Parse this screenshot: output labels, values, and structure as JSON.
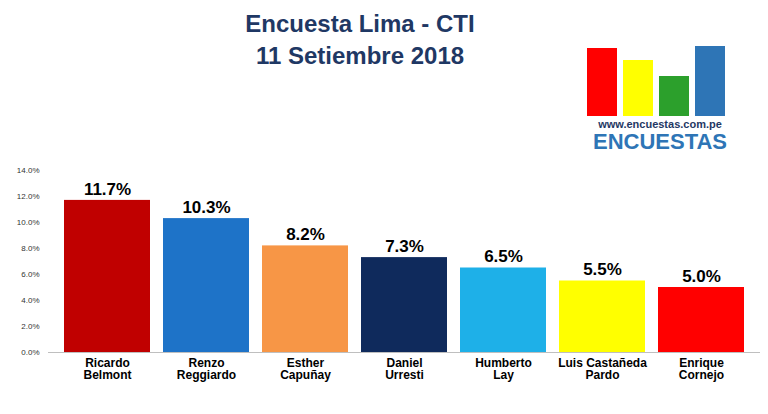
{
  "chart_data": {
    "type": "bar",
    "title": "Encuesta Lima - CTI",
    "subtitle": "11 Setiembre 2018",
    "annotations": [
      "www.encuestas.com.pe",
      "ENCUESTAS"
    ],
    "categories": [
      "Ricardo Belmont",
      "Renzo Reggiardo",
      "Esther Capuñay",
      "Daniel Urresti",
      "Humberto Lay",
      "Luis Castañeda Pardo",
      "Enrique Cornejo"
    ],
    "values": [
      11.7,
      10.3,
      8.2,
      7.3,
      6.5,
      5.5,
      5.0
    ],
    "value_labels": [
      "11.7%",
      "10.3%",
      "8.2%",
      "7.3%",
      "6.5%",
      "5.5%",
      "5.0%"
    ],
    "colors": [
      "#c00000",
      "#1e73c8",
      "#f79646",
      "#0f2a5c",
      "#1eb0e8",
      "#ffff00",
      "#ff0000"
    ],
    "ylim": [
      0,
      14
    ],
    "yticks": [
      {
        "value": 0,
        "label": "0.0%"
      },
      {
        "value": 2,
        "label": "2.0%"
      },
      {
        "value": 4,
        "label": "4.0%"
      },
      {
        "value": 6,
        "label": "6.0%"
      },
      {
        "value": 8,
        "label": "8.0%"
      },
      {
        "value": 10,
        "label": "10.0%"
      },
      {
        "value": 12,
        "label": "12.0%"
      },
      {
        "value": 14,
        "label": "14.0%"
      }
    ],
    "grid": false,
    "data_labels": true
  }
}
